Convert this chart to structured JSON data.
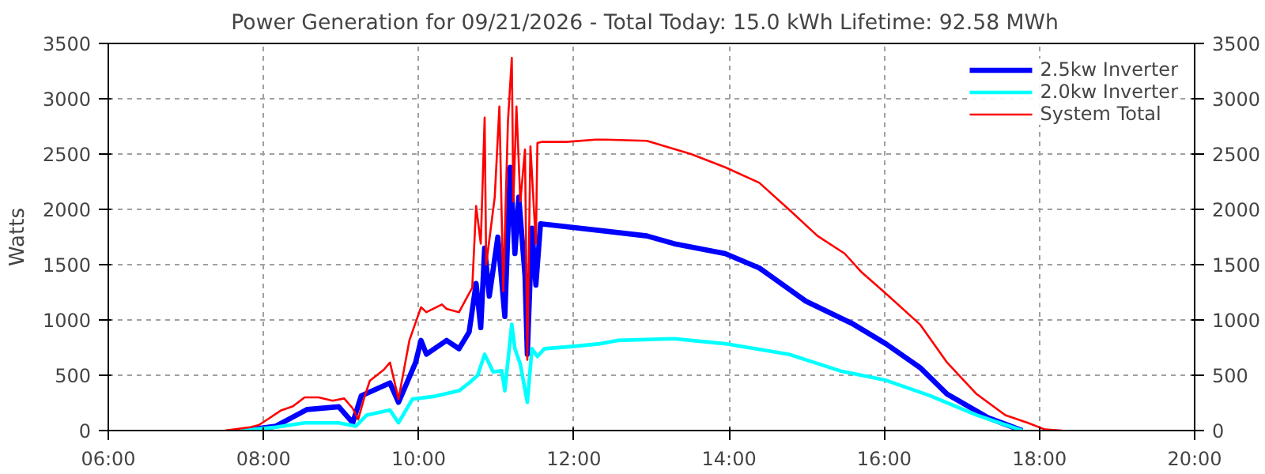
{
  "chart_data": {
    "type": "line",
    "title": "Power Generation for 09/21/2026 - Total Today: 15.0 kWh   Lifetime: 92.58 MWh",
    "ylabel": "Watts",
    "xlim": [
      6,
      20
    ],
    "xticks": [
      {
        "value": 6,
        "label": "06:00"
      },
      {
        "value": 8,
        "label": "08:00"
      },
      {
        "value": 10,
        "label": "10:00"
      },
      {
        "value": 12,
        "label": "12:00"
      },
      {
        "value": 14,
        "label": "14:00"
      },
      {
        "value": 16,
        "label": "16:00"
      },
      {
        "value": 18,
        "label": "18:00"
      },
      {
        "value": 20,
        "label": "20:00"
      }
    ],
    "ylim": [
      0,
      3500
    ],
    "yticks": [
      0,
      500,
      1000,
      1500,
      2000,
      2500,
      3000,
      3500
    ],
    "y2lim": [
      0,
      3500
    ],
    "y2ticks": [
      0,
      500,
      1000,
      1500,
      2000,
      2500,
      3000,
      3500
    ],
    "grid": true,
    "legend": "top right",
    "line_style": "solid",
    "marker": "none",
    "series": [
      {
        "name": "2.5kw Inverter",
        "color": "#0000ff",
        "x": [
          7.72,
          8.16,
          8.56,
          8.97,
          9.15,
          9.26,
          9.63,
          9.74,
          9.96,
          10.03,
          10.1,
          10.36,
          10.52,
          10.65,
          10.74,
          10.8,
          10.85,
          10.91,
          11.02,
          11.11,
          11.18,
          11.24,
          11.29,
          11.37,
          11.4,
          11.46,
          11.51,
          11.57,
          12.94,
          13.29,
          13.95,
          14.39,
          14.55,
          14.99,
          15.58,
          16.02,
          16.46,
          16.81,
          17.34,
          17.78
        ],
        "values": [
          0,
          40,
          190,
          215,
          70,
          315,
          430,
          255,
          615,
          815,
          690,
          815,
          740,
          890,
          1330,
          930,
          1650,
          1215,
          1750,
          1030,
          2380,
          1600,
          2110,
          1400,
          690,
          1830,
          1315,
          1870,
          1760,
          1690,
          1600,
          1470,
          1390,
          1170,
          970,
          785,
          570,
          330,
          115,
          0
        ]
      },
      {
        "name": "2.0kw Inverter",
        "color": "#00ffff",
        "x": [
          7.72,
          8.16,
          8.53,
          8.97,
          9.19,
          9.33,
          9.63,
          9.74,
          9.92,
          10.21,
          10.52,
          10.65,
          10.76,
          10.85,
          10.96,
          11.07,
          11.11,
          11.2,
          11.24,
          11.31,
          11.4,
          11.46,
          11.53,
          11.62,
          11.97,
          12.34,
          12.56,
          13.29,
          13.95,
          14.77,
          15.43,
          16.02,
          16.59,
          17.19,
          17.78
        ],
        "values": [
          0,
          30,
          70,
          70,
          40,
          140,
          185,
          70,
          285,
          310,
          360,
          430,
          500,
          690,
          530,
          540,
          360,
          960,
          740,
          600,
          255,
          740,
          670,
          740,
          760,
          785,
          815,
          830,
          785,
          690,
          540,
          455,
          315,
          140,
          0
        ]
      },
      {
        "name": "System Total",
        "color": "#ff0000",
        "x": [
          7.5,
          7.83,
          7.94,
          8.05,
          8.22,
          8.38,
          8.53,
          8.71,
          8.89,
          9.04,
          9.15,
          9.22,
          9.3,
          9.37,
          9.55,
          9.63,
          9.74,
          9.88,
          10.03,
          10.1,
          10.3,
          10.36,
          10.52,
          10.65,
          10.69,
          10.74,
          10.8,
          10.85,
          10.87,
          10.98,
          11.04,
          11.09,
          11.15,
          11.2,
          11.22,
          11.26,
          11.31,
          11.37,
          11.4,
          11.44,
          11.51,
          11.53,
          11.59,
          11.9,
          12.28,
          12.41,
          12.94,
          13.51,
          13.95,
          14.39,
          14.77,
          15.14,
          15.49,
          15.71,
          16.02,
          16.46,
          16.81,
          17.19,
          17.56,
          17.85,
          18.07,
          18.29
        ],
        "values": [
          0,
          30,
          50,
          100,
          180,
          220,
          300,
          300,
          270,
          290,
          200,
          100,
          300,
          450,
          550,
          615,
          285,
          815,
          1115,
          1070,
          1140,
          1100,
          1070,
          1240,
          1290,
          2030,
          1690,
          2830,
          1500,
          2110,
          2930,
          1260,
          2790,
          3370,
          2070,
          2930,
          2070,
          2540,
          640,
          2570,
          1690,
          2600,
          2610,
          2610,
          2630,
          2630,
          2620,
          2500,
          2380,
          2240,
          2000,
          1760,
          1600,
          1430,
          1240,
          960,
          615,
          330,
          140,
          70,
          10,
          0
        ]
      }
    ]
  }
}
